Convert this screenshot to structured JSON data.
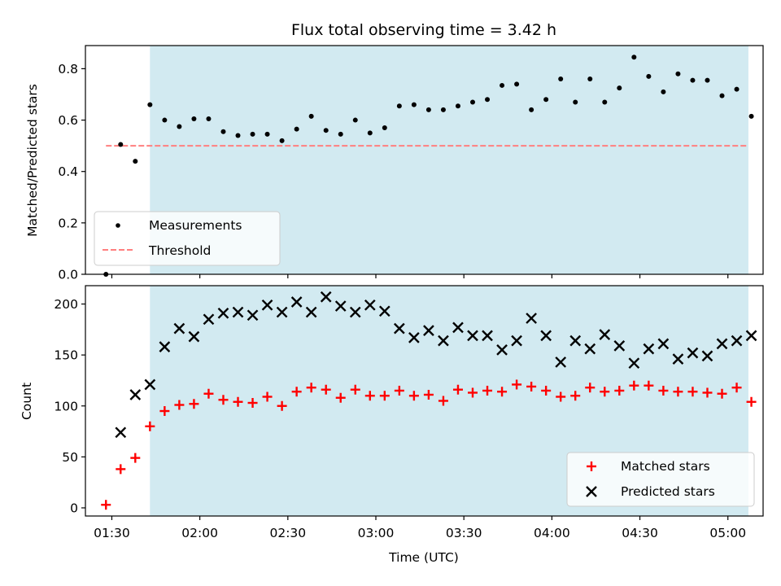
{
  "title": "Flux total observing time = 3.42 h",
  "colors": {
    "shade": "#add8e6",
    "threshold": "#ff7f7f",
    "matched": "#ff0000",
    "measurement": "#000000",
    "predicted": "#000000"
  },
  "chart_data": [
    {
      "type": "scatter",
      "panel": "top",
      "ylabel": "Matched/Predicted stars",
      "xlabel": "",
      "xlim": [
        "01:21",
        "05:12"
      ],
      "ylim": [
        0,
        0.89
      ],
      "yticks": [
        0.0,
        0.2,
        0.4,
        0.6,
        0.8
      ],
      "ytick_labels": [
        "0.0",
        "0.2",
        "0.4",
        "0.6",
        "0.8"
      ],
      "shaded_region": [
        "01:43",
        "05:07"
      ],
      "legend": {
        "placement": "lower-left",
        "entries": [
          {
            "label": "Measurements",
            "style": "dot"
          },
          {
            "label": "Threshold",
            "style": "dashed-line"
          }
        ]
      },
      "threshold": {
        "value": 0.5,
        "x": [
          "01:28",
          "05:07"
        ]
      },
      "series": [
        {
          "name": "Measurements",
          "x": [
            "01:28",
            "01:33",
            "01:38",
            "01:43",
            "01:48",
            "01:53",
            "01:58",
            "02:03",
            "02:08",
            "02:13",
            "02:18",
            "02:23",
            "02:28",
            "02:33",
            "02:38",
            "02:43",
            "02:48",
            "02:53",
            "02:58",
            "03:03",
            "03:08",
            "03:13",
            "03:18",
            "03:23",
            "03:28",
            "03:33",
            "03:38",
            "03:43",
            "03:48",
            "03:53",
            "03:58",
            "04:03",
            "04:08",
            "04:13",
            "04:18",
            "04:23",
            "04:28",
            "04:33",
            "04:38",
            "04:43",
            "04:48",
            "04:53",
            "04:58",
            "05:03",
            "05:08"
          ],
          "values": [
            0.0,
            0.505,
            0.44,
            0.66,
            0.6,
            0.575,
            0.605,
            0.605,
            0.555,
            0.54,
            0.545,
            0.545,
            0.52,
            0.565,
            0.615,
            0.56,
            0.545,
            0.6,
            0.55,
            0.57,
            0.655,
            0.66,
            0.64,
            0.64,
            0.655,
            0.67,
            0.68,
            0.735,
            0.74,
            0.64,
            0.68,
            0.76,
            0.67,
            0.76,
            0.67,
            0.725,
            0.845,
            0.77,
            0.71,
            0.78,
            0.755,
            0.755,
            0.695,
            0.72,
            0.615
          ]
        }
      ]
    },
    {
      "type": "scatter",
      "panel": "bottom",
      "ylabel": "Count",
      "xlabel": "Time (UTC)",
      "xlim": [
        "01:21",
        "05:12"
      ],
      "xticks": [
        "01:30",
        "02:00",
        "02:30",
        "03:00",
        "03:30",
        "04:00",
        "04:30",
        "05:00"
      ],
      "ylim": [
        -8,
        218
      ],
      "yticks": [
        0,
        50,
        100,
        150,
        200
      ],
      "ytick_labels": [
        "0",
        "50",
        "100",
        "150",
        "200"
      ],
      "shaded_region": [
        "01:43",
        "05:07"
      ],
      "legend": {
        "placement": "lower-right",
        "entries": [
          {
            "label": "Matched stars",
            "style": "plus"
          },
          {
            "label": "Predicted stars",
            "style": "cross"
          }
        ]
      },
      "series": [
        {
          "name": "Matched stars",
          "x": [
            "01:28",
            "01:33",
            "01:38",
            "01:43",
            "01:48",
            "01:53",
            "01:58",
            "02:03",
            "02:08",
            "02:13",
            "02:18",
            "02:23",
            "02:28",
            "02:33",
            "02:38",
            "02:43",
            "02:48",
            "02:53",
            "02:58",
            "03:03",
            "03:08",
            "03:13",
            "03:18",
            "03:23",
            "03:28",
            "03:33",
            "03:38",
            "03:43",
            "03:48",
            "03:53",
            "03:58",
            "04:03",
            "04:08",
            "04:13",
            "04:18",
            "04:23",
            "04:28",
            "04:33",
            "04:38",
            "04:43",
            "04:48",
            "04:53",
            "04:58",
            "05:03",
            "05:08"
          ],
          "values": [
            3,
            38,
            49,
            80,
            95,
            101,
            102,
            112,
            106,
            104,
            103,
            109,
            100,
            114,
            118,
            116,
            108,
            116,
            110,
            110,
            115,
            110,
            111,
            105,
            116,
            113,
            115,
            114,
            121,
            119,
            115,
            109,
            110,
            118,
            114,
            115,
            120,
            120,
            115,
            114,
            114,
            113,
            112,
            118,
            104
          ]
        },
        {
          "name": "Predicted stars",
          "x": [
            "01:33",
            "01:38",
            "01:43",
            "01:48",
            "01:53",
            "01:58",
            "02:03",
            "02:08",
            "02:13",
            "02:18",
            "02:23",
            "02:28",
            "02:33",
            "02:38",
            "02:43",
            "02:48",
            "02:53",
            "02:58",
            "03:03",
            "03:08",
            "03:13",
            "03:18",
            "03:23",
            "03:28",
            "03:33",
            "03:38",
            "03:43",
            "03:48",
            "03:53",
            "03:58",
            "04:03",
            "04:08",
            "04:13",
            "04:18",
            "04:23",
            "04:28",
            "04:33",
            "04:38",
            "04:43",
            "04:48",
            "04:53",
            "04:58",
            "05:03",
            "05:08"
          ],
          "values": [
            74,
            111,
            121,
            158,
            176,
            168,
            185,
            191,
            192,
            189,
            199,
            192,
            202,
            192,
            207,
            198,
            192,
            199,
            193,
            176,
            167,
            174,
            164,
            177,
            169,
            169,
            155,
            164,
            186,
            169,
            143,
            164,
            156,
            170,
            159,
            142,
            156,
            161,
            146,
            152,
            149,
            161,
            164,
            169
          ]
        }
      ]
    }
  ]
}
